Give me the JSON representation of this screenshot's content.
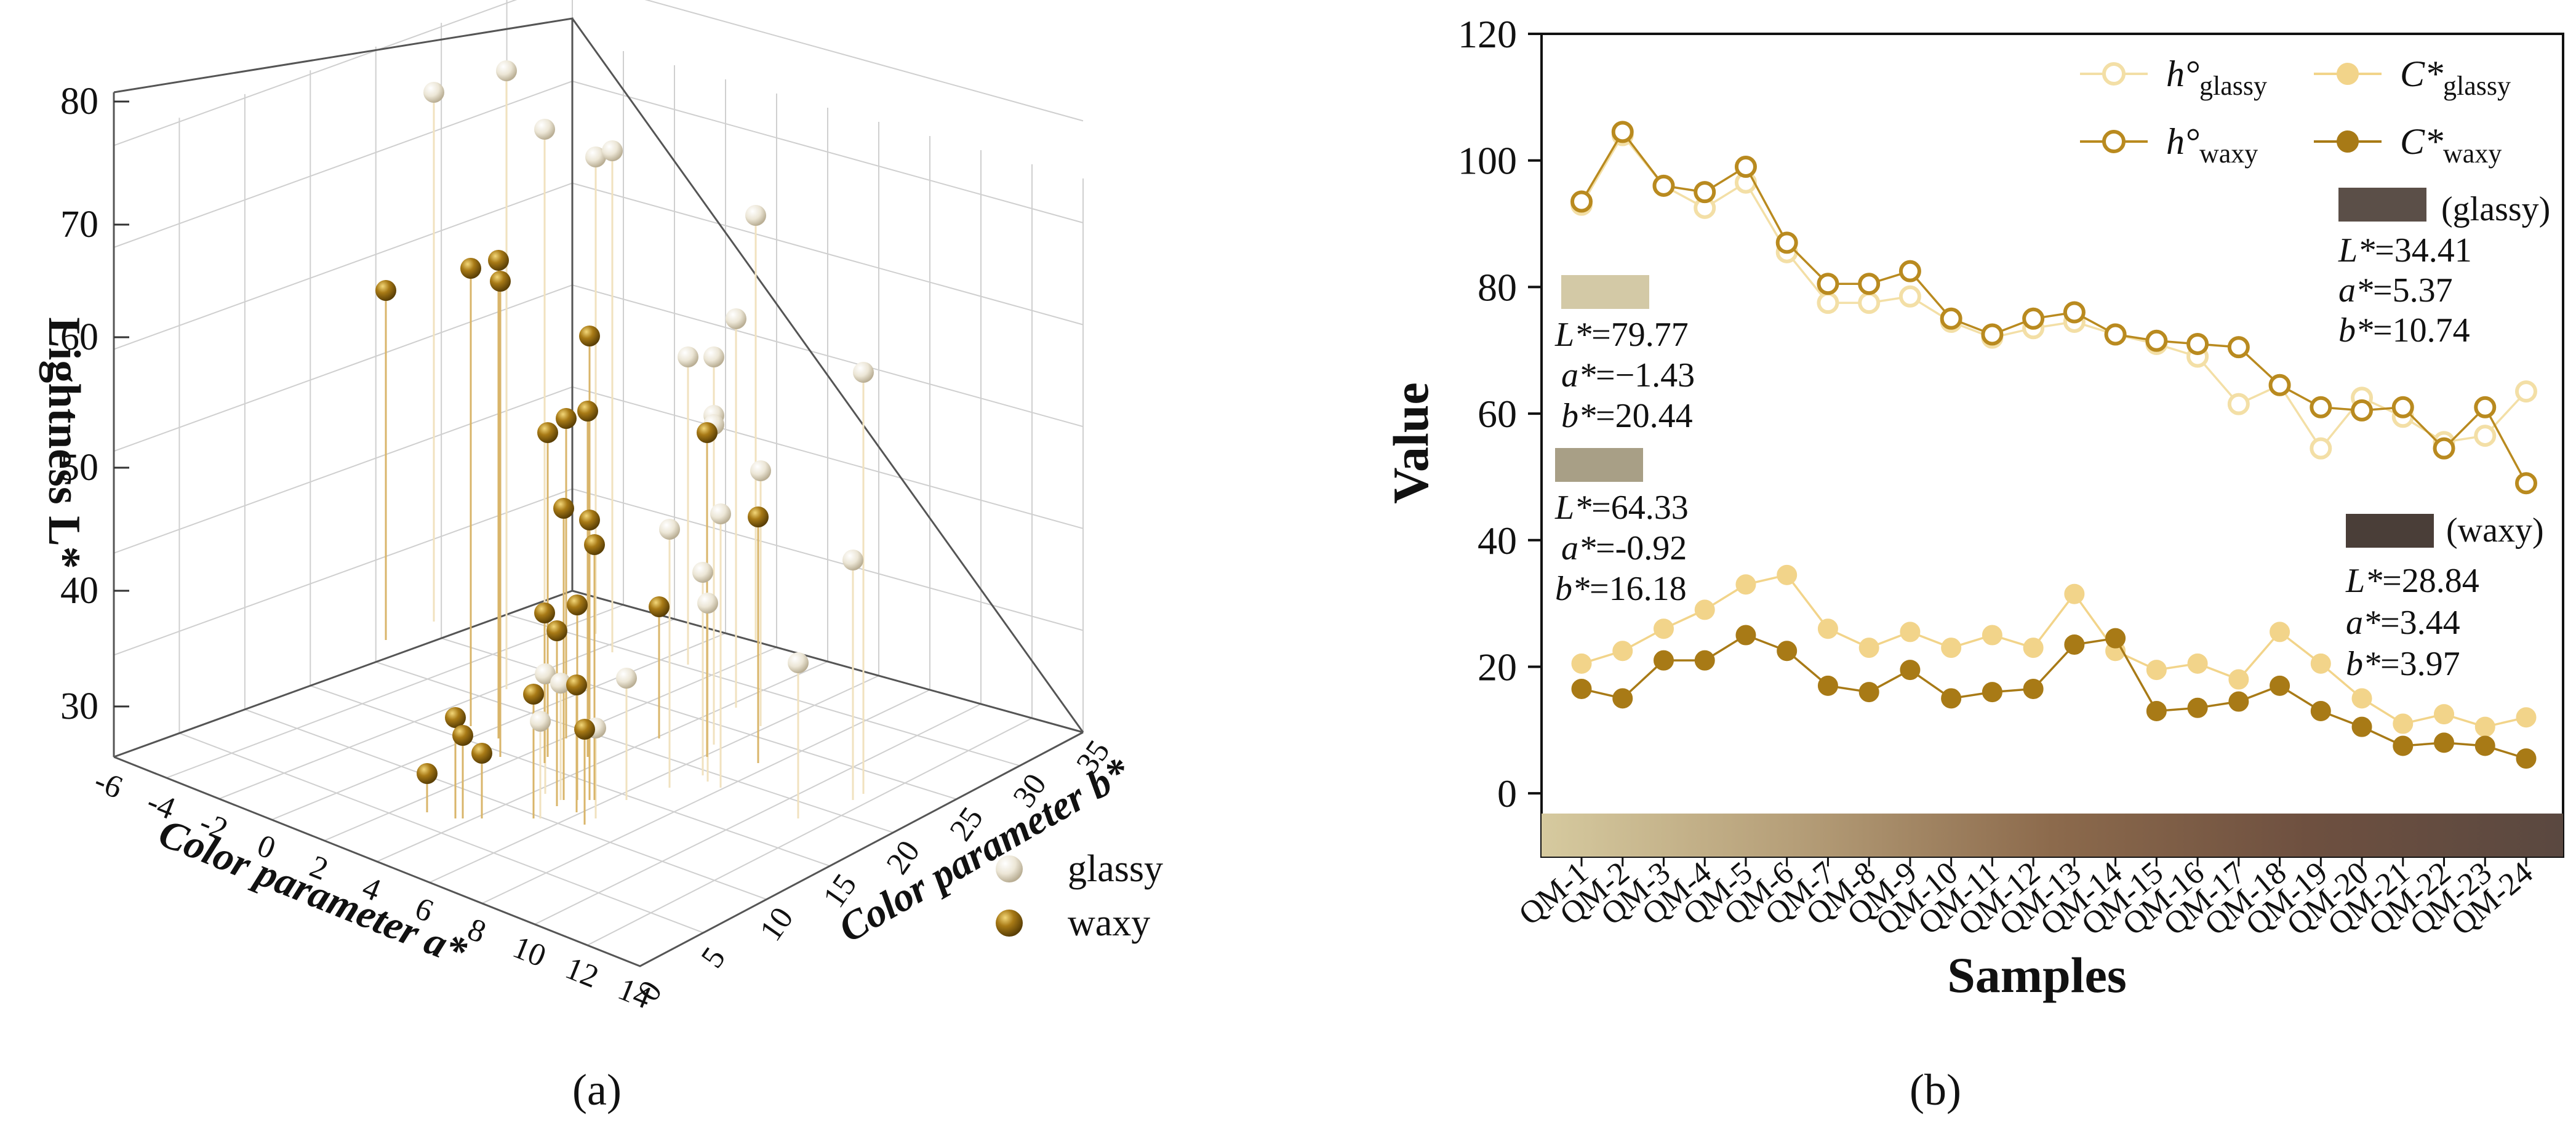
{
  "colors": {
    "glassy_line": "#f3dfa6",
    "glassy_fill": "#f2d48a",
    "waxy_line": "#b98a1f",
    "waxy_fill": "#a87a16",
    "stem_glassy": "#f1e2bf",
    "stem_waxy": "#d9b56a",
    "ball_glassy": "#ece6d6",
    "ball_waxy": "#8a6410",
    "swatch_1": "#d3c9a6",
    "swatch_2": "#a89f86",
    "swatch_glassy_dark": "#5b4f48",
    "swatch_waxy_dark": "#4a3e38",
    "gradient": [
      "#d6ca9f",
      "#b59e78",
      "#8c6a4c",
      "#6e5040",
      "#5a4840"
    ]
  },
  "panel_a": {
    "label": "(a)",
    "chart_data": {
      "type": "scatter3d",
      "zlabel": "Lightness L*",
      "xlabel": "Color parameter a*",
      "ylabel": "Color parameter b*",
      "z_ticks": [
        "30",
        "40",
        "50",
        "60",
        "70",
        "80"
      ],
      "a_ticks": [
        "-6",
        "-4",
        "-2",
        "0",
        "2",
        "4",
        "6",
        "8",
        "10",
        "12",
        "14"
      ],
      "b_ticks": [
        "0",
        "5",
        "10",
        "15",
        "20",
        "25",
        "30",
        "35"
      ],
      "legend": [
        {
          "name": "glassy",
          "icon": "sphere-light"
        },
        {
          "name": "waxy",
          "icon": "sphere-dark"
        }
      ]
    }
  },
  "panel_b": {
    "label": "(b)",
    "chart_data": {
      "type": "line",
      "xlabel": "Samples",
      "ylabel": "Value",
      "ylim": [
        -10,
        120
      ],
      "yticks": [
        0,
        20,
        40,
        60,
        80,
        100,
        120
      ],
      "categories": [
        "QM-1",
        "QM-2",
        "QM-3",
        "QM-4",
        "QM-5",
        "QM-6",
        "QM-7",
        "QM-8",
        "QM-9",
        "QM-10",
        "QM-11",
        "QM-12",
        "QM-13",
        "QM-14",
        "QM-15",
        "QM-16",
        "QM-17",
        "QM-18",
        "QM-19",
        "QM-20",
        "QM-21",
        "QM-22",
        "QM-23",
        "QM-24"
      ],
      "series": [
        {
          "name": "h°glassy",
          "base": "h°",
          "sub": "glassy",
          "marker": "open",
          "color": "#f3dfa6",
          "values": [
            93,
            104,
            96,
            92.5,
            96.5,
            85.5,
            77.5,
            77.5,
            78.5,
            74.5,
            72,
            73.5,
            74.5,
            72.5,
            71,
            69,
            61.5,
            64.5,
            54.5,
            62.5,
            59.5,
            55.5,
            56.5,
            63.5
          ]
        },
        {
          "name": "C*glassy",
          "base": "C*",
          "sub": "glassy",
          "marker": "filled",
          "color": "#f2d48a",
          "values": [
            20.5,
            22.5,
            26,
            29,
            33,
            34.5,
            26,
            23,
            25.5,
            23,
            25,
            23,
            31.5,
            22.5,
            19.5,
            20.5,
            18,
            25.5,
            20.5,
            15,
            11,
            12.5,
            10.5,
            12
          ]
        },
        {
          "name": "h°waxy",
          "base": "h°",
          "sub": "waxy",
          "marker": "open",
          "color": "#b98a1f",
          "values": [
            93.5,
            104.5,
            96,
            95,
            99,
            87,
            80.5,
            80.5,
            82.5,
            75,
            72.5,
            75,
            76,
            72.5,
            71.5,
            71,
            70.5,
            64.5,
            61,
            60.5,
            61,
            54.5,
            61,
            49
          ]
        },
        {
          "name": "C*waxy",
          "base": "C*",
          "sub": "waxy",
          "marker": "filled",
          "color": "#a87a16",
          "values": [
            16.5,
            15,
            21,
            21,
            25,
            22.5,
            17,
            16,
            19.5,
            15,
            16,
            16.5,
            23.5,
            24.5,
            13,
            13.5,
            14.5,
            17,
            13,
            10.5,
            7.5,
            8,
            7.5,
            5.5
          ]
        }
      ],
      "annotations": [
        {
          "swatch_color": "#d3c9a6",
          "L_label": "L*",
          "L_value": "=79.77",
          "a_label": "a*",
          "a_value": "=−1.43",
          "b_label": "b*",
          "b_value": "=20.44"
        },
        {
          "swatch_color": "#a89f86",
          "L_label": "L*",
          "L_value": "=64.33",
          "a_label": "a*",
          "a_value": "=-0.92",
          "b_label": "b*",
          "b_value": "=16.18"
        },
        {
          "swatch_color": "#5b4f48",
          "tag": "(glassy)",
          "L_label": "L*",
          "L_value": "=34.41",
          "a_label": "a*",
          "a_value": "=5.37",
          "b_label": "b*",
          "b_value": "=10.74"
        },
        {
          "swatch_color": "#4a3e38",
          "tag": "(waxy)",
          "L_label": "L*",
          "L_value": "=28.84",
          "a_label": "a*",
          "a_value": "=3.44",
          "b_label": "b*",
          "b_value": "=3.97"
        }
      ]
    }
  }
}
